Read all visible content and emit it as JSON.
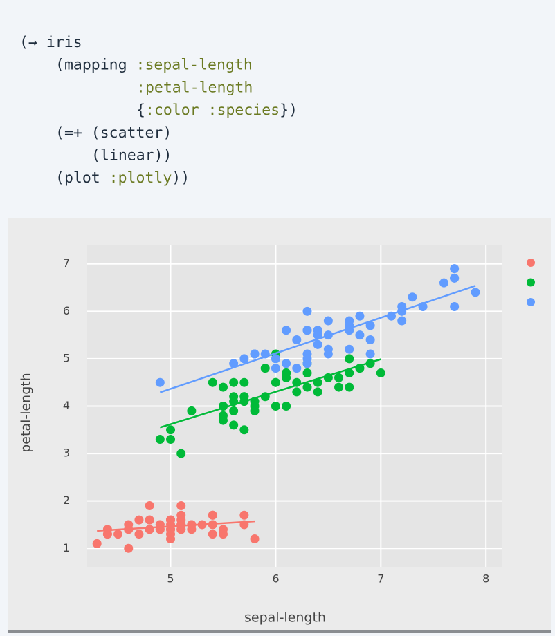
{
  "code": [
    [
      "(→ iris"
    ],
    [
      "(mapping ",
      ":sepal-length"
    ],
    [
      ":petal-length"
    ],
    [
      "{",
      ":color :species",
      "})"
    ],
    [
      "(=+ (scatter)"
    ],
    [
      "(linear))"
    ],
    [
      "(plot ",
      ":plotly",
      "))"
    ]
  ],
  "chart_data": {
    "type": "scatter",
    "xlabel": "sepal-length",
    "ylabel": "petal-length",
    "xlim": [
      4.2,
      8.15
    ],
    "ylim": [
      0.61,
      7.39
    ],
    "xticks": [
      5,
      6,
      7,
      8
    ],
    "yticks": [
      1,
      2,
      3,
      4,
      5,
      6,
      7
    ],
    "grid": true,
    "legend": "right",
    "series": [
      {
        "color": "#f8766d",
        "x": [
          5.1,
          4.9,
          4.7,
          4.6,
          5.0,
          5.4,
          4.6,
          5.0,
          4.4,
          4.9,
          5.4,
          4.8,
          4.8,
          4.3,
          5.8,
          5.7,
          5.4,
          5.1,
          5.7,
          5.1,
          5.4,
          5.1,
          4.6,
          5.1,
          4.8,
          5.0,
          5.0,
          5.2,
          5.2,
          4.7,
          4.8,
          5.4,
          5.2,
          5.5,
          4.9,
          5.0,
          5.5,
          4.9,
          4.4,
          5.1,
          5.0,
          4.5,
          4.4,
          5.0,
          5.1,
          4.8,
          5.1,
          4.6,
          5.3,
          5.0
        ],
        "values": [
          1.4,
          1.4,
          1.3,
          1.5,
          1.4,
          1.7,
          1.4,
          1.5,
          1.4,
          1.5,
          1.5,
          1.6,
          1.4,
          1.1,
          1.2,
          1.5,
          1.3,
          1.4,
          1.7,
          1.5,
          1.7,
          1.5,
          1.0,
          1.7,
          1.9,
          1.6,
          1.6,
          1.5,
          1.4,
          1.6,
          1.6,
          1.5,
          1.5,
          1.4,
          1.5,
          1.2,
          1.3,
          1.4,
          1.3,
          1.5,
          1.3,
          1.3,
          1.3,
          1.6,
          1.9,
          1.4,
          1.6,
          1.4,
          1.5,
          1.4
        ]
      },
      {
        "color": "#00ba38",
        "x": [
          7.0,
          6.4,
          6.9,
          5.5,
          6.5,
          5.7,
          6.3,
          4.9,
          6.6,
          5.2,
          5.0,
          5.9,
          6.0,
          6.1,
          5.6,
          6.7,
          5.6,
          5.8,
          6.2,
          5.6,
          5.9,
          6.1,
          6.3,
          6.1,
          6.4,
          6.6,
          6.8,
          6.7,
          6.0,
          5.7,
          5.5,
          5.5,
          5.8,
          6.0,
          5.4,
          6.0,
          6.7,
          6.3,
          5.6,
          5.5,
          5.5,
          6.1,
          5.8,
          5.0,
          5.6,
          5.7,
          5.7,
          6.2,
          5.1,
          5.7
        ],
        "values": [
          4.7,
          4.5,
          4.9,
          4.0,
          4.6,
          4.5,
          4.7,
          3.3,
          4.6,
          3.9,
          3.5,
          4.2,
          4.0,
          4.7,
          3.6,
          4.4,
          4.5,
          4.1,
          4.5,
          3.9,
          4.8,
          4.0,
          4.9,
          4.7,
          4.3,
          4.4,
          4.8,
          5.0,
          4.5,
          3.5,
          3.8,
          3.7,
          3.9,
          5.1,
          4.5,
          4.5,
          4.7,
          4.4,
          4.1,
          4.0,
          4.4,
          4.6,
          4.0,
          3.3,
          4.2,
          4.2,
          4.2,
          4.3,
          3.0,
          4.1
        ]
      },
      {
        "color": "#619cff",
        "x": [
          6.3,
          5.8,
          7.1,
          6.3,
          6.5,
          7.6,
          4.9,
          7.3,
          6.7,
          7.2,
          6.5,
          6.4,
          6.8,
          5.7,
          5.8,
          6.4,
          6.5,
          7.7,
          7.7,
          6.0,
          6.9,
          5.6,
          7.7,
          6.3,
          6.7,
          7.2,
          6.2,
          6.1,
          6.4,
          7.2,
          7.4,
          7.9,
          6.4,
          6.3,
          6.1,
          7.7,
          6.3,
          6.4,
          6.0,
          6.9,
          6.7,
          6.9,
          5.8,
          6.8,
          6.7,
          6.7,
          6.3,
          6.5,
          6.2,
          5.9
        ],
        "values": [
          6.0,
          5.1,
          5.9,
          5.6,
          5.8,
          6.6,
          4.5,
          6.3,
          5.8,
          6.1,
          5.1,
          5.3,
          5.5,
          5.0,
          5.1,
          5.3,
          5.5,
          6.7,
          6.9,
          5.0,
          5.7,
          4.9,
          6.7,
          4.9,
          5.7,
          6.0,
          4.8,
          4.9,
          5.6,
          5.8,
          6.1,
          6.4,
          5.6,
          5.1,
          5.6,
          6.1,
          5.6,
          5.5,
          4.8,
          5.4,
          5.6,
          5.1,
          5.1,
          5.9,
          5.7,
          5.2,
          5.0,
          5.2,
          5.4,
          5.1
        ]
      }
    ],
    "fits": [
      {
        "color": "#f8766d",
        "x": [
          4.3,
          5.8
        ],
        "values": [
          1.37,
          1.57
        ]
      },
      {
        "color": "#00ba38",
        "x": [
          4.9,
          7.0
        ],
        "values": [
          3.55,
          4.99
        ]
      },
      {
        "color": "#619cff",
        "x": [
          4.9,
          7.9
        ],
        "values": [
          4.29,
          6.54
        ]
      }
    ]
  }
}
